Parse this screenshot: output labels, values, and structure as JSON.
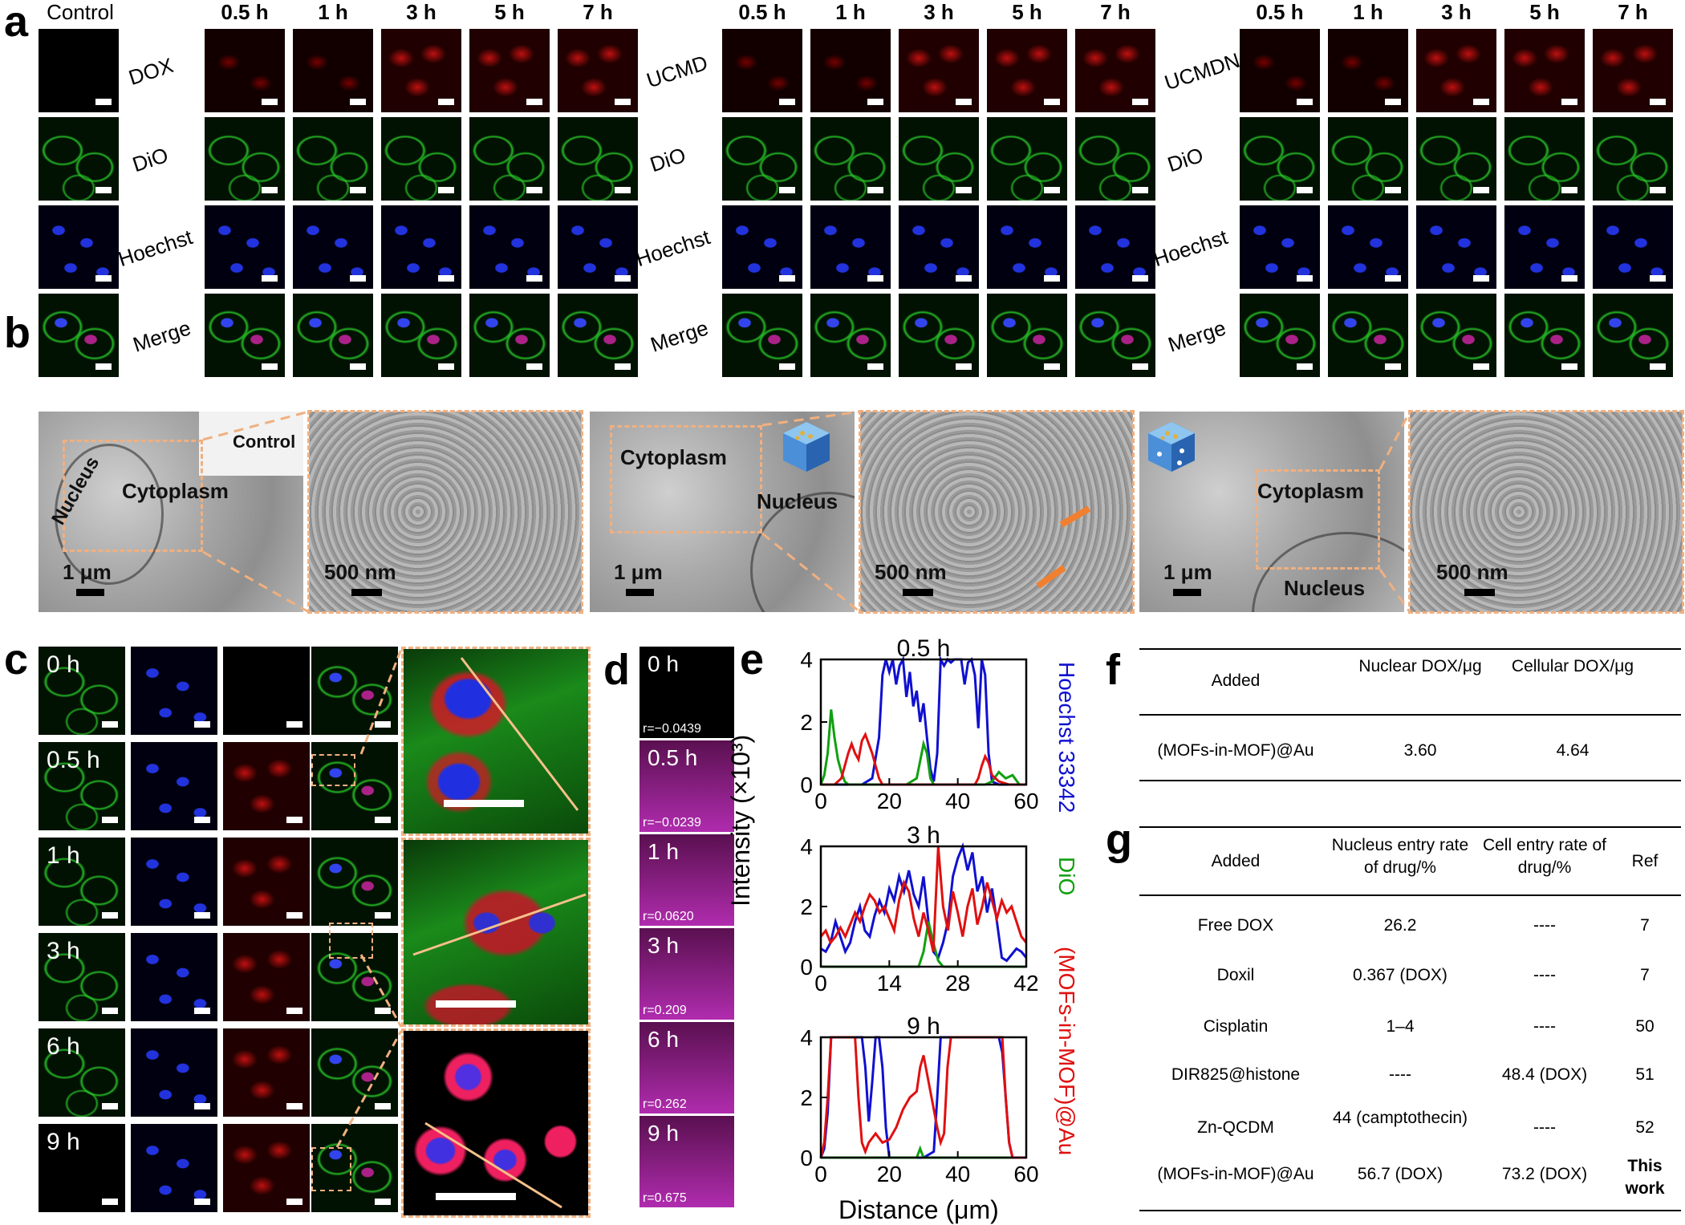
{
  "panels": {
    "a": "a",
    "b": "b",
    "c": "c",
    "d": "d",
    "e": "e",
    "f": "f",
    "g": "g"
  },
  "panel_a": {
    "control_label": "Control",
    "times": [
      "0.5 h",
      "1 h",
      "3 h",
      "5 h",
      "7 h"
    ],
    "groups": [
      "DOX",
      "UCMD",
      "UCMDN"
    ],
    "rows": [
      "DiO",
      "Hoechst",
      "Merge"
    ]
  },
  "panel_b": {
    "control": "Control",
    "nucleus": "Nucleus",
    "cytoplasm": "Cytoplasm",
    "scale_1um": "1 μm",
    "scale_500nm": "500 nm"
  },
  "panel_c": {
    "times": [
      "0 h",
      "0.5 h",
      "1 h",
      "3 h",
      "6 h",
      "9 h"
    ]
  },
  "panel_d": {
    "times": [
      "0 h",
      "0.5 h",
      "1 h",
      "3 h",
      "6 h",
      "9 h"
    ],
    "r_values": [
      "r=−0.0439",
      "r=−0.0239",
      "r=0.0620",
      "r=0.209",
      "r=0.262",
      "r=0.675"
    ]
  },
  "chart_data": [
    {
      "type": "line",
      "title": "0.5 h",
      "xlim": [
        0,
        60
      ],
      "ylim": [
        0,
        4
      ],
      "xticks": [
        "0",
        "20",
        "40",
        "60"
      ],
      "yticks": [
        "0",
        "2",
        "4"
      ],
      "series": [
        {
          "name": "Hoechst 33342",
          "color": "#1010d0",
          "x": [
            0,
            3,
            6,
            9,
            12,
            15,
            17,
            18,
            19,
            20,
            21,
            22,
            23,
            24,
            25,
            26,
            27,
            28,
            29,
            30,
            31,
            32,
            33,
            34,
            35,
            36,
            37,
            38,
            39,
            40,
            41,
            42,
            43,
            44,
            45,
            46,
            47,
            48,
            49,
            50,
            52,
            55,
            58,
            60
          ],
          "y": [
            0,
            0,
            0,
            0,
            0,
            0.2,
            1.5,
            3.5,
            4,
            3.6,
            4,
            3.2,
            3.8,
            4,
            2.8,
            3.6,
            2.5,
            3,
            2,
            2.6,
            1.5,
            0.5,
            0.1,
            1,
            4,
            3.8,
            4,
            3.9,
            4,
            4,
            4,
            3.2,
            3.9,
            4,
            3.5,
            1.8,
            4,
            3.5,
            1,
            0.1,
            0,
            0,
            0,
            0
          ]
        },
        {
          "name": "DiO",
          "color": "#10a010",
          "x": [
            0,
            1,
            2,
            3,
            4,
            5,
            6,
            7,
            8,
            10,
            14,
            20,
            25,
            28,
            30,
            31,
            32,
            33,
            34,
            35,
            40,
            46,
            48,
            50,
            52,
            54,
            56,
            58,
            60
          ],
          "y": [
            0,
            0.3,
            1,
            2.4,
            1.5,
            0.8,
            0.4,
            0.1,
            0,
            0,
            0,
            0,
            0,
            0.2,
            1.3,
            1,
            0.2,
            0,
            0,
            0,
            0,
            0,
            0,
            0.1,
            0.4,
            0.2,
            0.3,
            0,
            0
          ]
        },
        {
          "name": "(MOFs-in-MOF)@Au",
          "color": "#e01010",
          "x": [
            0,
            4,
            6,
            8,
            9,
            10,
            11,
            12,
            13,
            14,
            15,
            16,
            17,
            18,
            20,
            25,
            30,
            40,
            45,
            46,
            47,
            48,
            49,
            50,
            52,
            55,
            60
          ],
          "y": [
            0,
            0,
            0.2,
            1,
            1.3,
            1,
            0.8,
            1.4,
            1.6,
            1.3,
            1,
            0.6,
            0.2,
            0,
            0,
            0,
            0,
            0,
            0,
            0.2,
            0.6,
            0.9,
            0.7,
            0.3,
            0.1,
            0,
            0
          ]
        }
      ]
    },
    {
      "type": "line",
      "title": "3 h",
      "xlim": [
        0,
        42
      ],
      "ylim": [
        0,
        4
      ],
      "xticks": [
        "0",
        "14",
        "28",
        "42"
      ],
      "yticks": [
        "0",
        "2",
        "4"
      ],
      "series": [
        {
          "name": "Hoechst 33342",
          "color": "#1010d0",
          "x": [
            0,
            1,
            2,
            3,
            4,
            5,
            6,
            7,
            8,
            9,
            10,
            11,
            12,
            13,
            14,
            15,
            16,
            17,
            18,
            19,
            20,
            21,
            22,
            23,
            24,
            25,
            26,
            27,
            28,
            29,
            30,
            31,
            32,
            33,
            34,
            35,
            36,
            37,
            38,
            39,
            40,
            41,
            42
          ],
          "y": [
            0.6,
            0.5,
            0.8,
            1.5,
            1.0,
            0.5,
            0.8,
            1.5,
            2.0,
            1.2,
            1.0,
            1.7,
            2.2,
            1.8,
            2.6,
            2.2,
            3.0,
            2.5,
            3.2,
            2.4,
            2.0,
            3.0,
            1.5,
            0.5,
            0.3,
            0.8,
            1.5,
            3.0,
            3.6,
            4.0,
            3.2,
            3.8,
            2.5,
            3.0,
            1.8,
            2.6,
            1.5,
            0.3,
            0.2,
            0.4,
            0.6,
            0.5,
            0.3
          ]
        },
        {
          "name": "DiO",
          "color": "#10a010",
          "x": [
            0,
            5,
            10,
            15,
            20,
            21,
            22,
            23,
            24,
            25,
            30,
            35,
            40,
            42
          ],
          "y": [
            0,
            0,
            0,
            0,
            0,
            0.5,
            1.5,
            0.8,
            0.2,
            0,
            0,
            0,
            0,
            0
          ]
        },
        {
          "name": "(MOFs-in-MOF)@Au",
          "color": "#e01010",
          "x": [
            0,
            1,
            2,
            3,
            4,
            5,
            6,
            7,
            8,
            9,
            10,
            11,
            12,
            13,
            14,
            15,
            16,
            17,
            18,
            19,
            20,
            21,
            22,
            23,
            24,
            25,
            26,
            27,
            28,
            29,
            30,
            31,
            32,
            33,
            34,
            35,
            36,
            37,
            38,
            39,
            40,
            41,
            42
          ],
          "y": [
            1.0,
            1.2,
            0.8,
            1.0,
            1.3,
            1.0,
            1.4,
            1.8,
            1.5,
            2.0,
            2.4,
            2.2,
            1.8,
            2.0,
            1.6,
            1.2,
            2.2,
            2.8,
            2.5,
            1.6,
            1.0,
            1.8,
            1.2,
            0.5,
            4.0,
            2.0,
            1.2,
            2.5,
            1.8,
            1.0,
            2.0,
            2.6,
            1.4,
            2.0,
            2.8,
            2.2,
            1.6,
            2.2,
            1.8,
            2.0,
            1.5,
            1.0,
            0.8
          ]
        }
      ]
    },
    {
      "type": "line",
      "title": "9 h",
      "xlim": [
        0,
        60
      ],
      "ylim": [
        0,
        4
      ],
      "xticks": [
        "0",
        "20",
        "40",
        "60"
      ],
      "yticks": [
        "0",
        "2",
        "4"
      ],
      "series": [
        {
          "name": "Hoechst 33342",
          "color": "#1010d0",
          "x": [
            0,
            1,
            2,
            3,
            4,
            6,
            8,
            10,
            12,
            13,
            14,
            15,
            16,
            17,
            18,
            19,
            20,
            25,
            30,
            33,
            34,
            35,
            36,
            37,
            38,
            40,
            45,
            50,
            52,
            53,
            54,
            55,
            56,
            58,
            60
          ],
          "y": [
            0,
            0.3,
            1.5,
            4,
            4,
            4,
            4,
            4,
            4,
            3,
            1.2,
            2.5,
            4,
            4,
            3,
            1,
            0,
            0,
            0,
            0.2,
            2,
            4,
            4,
            4,
            4,
            4,
            4,
            4,
            4,
            3.5,
            2,
            0.5,
            0,
            0,
            0
          ]
        },
        {
          "name": "DiO",
          "color": "#10a010",
          "x": [
            0,
            5,
            10,
            15,
            20,
            25,
            28,
            29,
            30,
            35,
            40,
            45,
            50,
            55,
            60
          ],
          "y": [
            0,
            0,
            0,
            0,
            0,
            0,
            0,
            0.3,
            0,
            0,
            0,
            0,
            0,
            0,
            0
          ]
        },
        {
          "name": "(MOFs-in-MOF)@Au",
          "color": "#e01010",
          "x": [
            0,
            1,
            2,
            3,
            4,
            6,
            8,
            10,
            11,
            12,
            13,
            14,
            16,
            18,
            20,
            22,
            24,
            26,
            28,
            29,
            30,
            32,
            33,
            34,
            35,
            36,
            37,
            38,
            40,
            42,
            44,
            46,
            48,
            50,
            52,
            53,
            54,
            55,
            56,
            58,
            60
          ],
          "y": [
            0,
            0.5,
            2,
            4,
            4,
            4,
            4,
            4,
            2,
            0.5,
            0.2,
            0.5,
            0.8,
            0.5,
            0.6,
            1,
            1.6,
            2,
            2.2,
            3,
            3.4,
            2.2,
            1.6,
            1,
            0.5,
            0.8,
            3,
            4,
            4,
            4,
            4,
            4,
            4,
            4,
            4,
            4,
            2,
            0.5,
            0,
            0,
            0
          ]
        }
      ]
    }
  ],
  "panel_e": {
    "ylabel": "Intensity (×10³)",
    "xlabel": "Distance (μm)",
    "legend": [
      "Hoechst 33342",
      "DiO",
      "(MOFs-in-MOF)@Au"
    ]
  },
  "panel_f": {
    "headers": [
      "Added",
      "Nuclear DOX/μg",
      "Cellular DOX/μg"
    ],
    "rows": [
      [
        "(MOFs-in-MOF)@Au",
        "3.60",
        "4.64"
      ]
    ]
  },
  "panel_g": {
    "headers": [
      "Added",
      "Nucleus entry rate of drug/%",
      "Cell entry rate of drug/%",
      "Ref"
    ],
    "rows": [
      [
        "Free DOX",
        "26.2",
        "----",
        "7"
      ],
      [
        "Doxil",
        "0.367  (DOX)",
        "----",
        "7"
      ],
      [
        "Cisplatin",
        "1–4",
        "----",
        "50"
      ],
      [
        "DIR825@histone",
        "----",
        "48.4 (DOX)",
        "51"
      ],
      [
        "Zn-QCDM",
        "44 (camptothecin)",
        "----",
        "52"
      ],
      [
        "(MOFs-in-MOF)@Au",
        "56.7 (DOX)",
        "73.2 (DOX)",
        "This work"
      ]
    ]
  },
  "colors": {
    "hoechst": "#1010d0",
    "dio": "#10a010",
    "mof": "#e01010",
    "dash": "#f0b080"
  }
}
